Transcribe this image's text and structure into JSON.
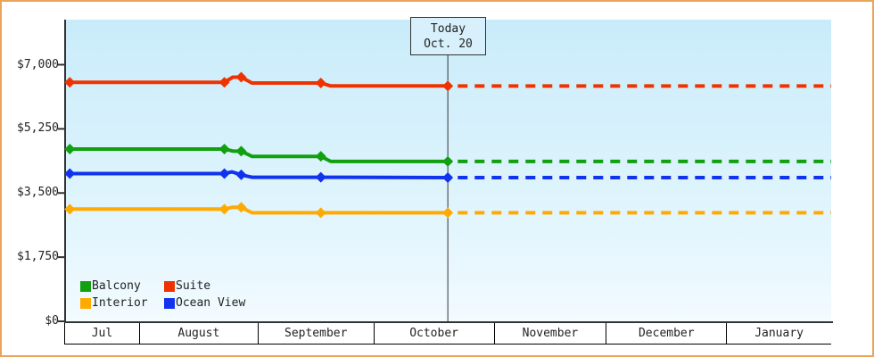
{
  "window": {
    "background": "#ffffff",
    "border_color": "#eba55a"
  },
  "today_flag": {
    "line1": "Today",
    "line2": "Oct. 20"
  },
  "legend": {
    "position": "inside-bottom-left",
    "items": [
      {
        "label": "Balcony",
        "color": "#10a010"
      },
      {
        "label": "Suite",
        "color": "#ee3300"
      },
      {
        "label": "Interior",
        "color": "#ffaa00"
      },
      {
        "label": "Ocean View",
        "color": "#1133ee"
      }
    ]
  },
  "chart_data": {
    "type": "line",
    "title": "",
    "description": "Price history with dashed flat forecast after the Today (Oct. 20) marker",
    "grid": false,
    "background_gradient": [
      "#c9ecfa",
      "#f3fbfe"
    ],
    "axis_color": "#333333",
    "y_axis": {
      "currency": "USD",
      "ticks": [
        {
          "value": 7000,
          "label": "$7,000"
        },
        {
          "value": 5250,
          "label": "$5,250"
        },
        {
          "value": 3500,
          "label": "$3,500"
        },
        {
          "value": 1750,
          "label": "$1,750"
        },
        {
          "value": 0,
          "label": "$0"
        }
      ],
      "ylim": [
        0,
        8200
      ]
    },
    "x_axis": {
      "months": [
        "Jul",
        "August",
        "September",
        "October",
        "November",
        "December",
        "January"
      ],
      "month_width_fractions": [
        0.0977,
        0.1547,
        0.1512,
        0.157,
        0.1465,
        0.157,
        0.1359
      ]
    },
    "today_marker": {
      "x_fraction": 0.499,
      "label": "Today",
      "date": "Oct. 20"
    },
    "series": [
      {
        "name": "Suite",
        "color": "#ee3300",
        "points": [
          {
            "x": 0.0,
            "v": 6520
          },
          {
            "x": 0.005,
            "v": 6520,
            "marker": true
          },
          {
            "x": 0.207,
            "v": 6520,
            "marker": true
          },
          {
            "x": 0.218,
            "v": 6660
          },
          {
            "x": 0.229,
            "v": 6660,
            "marker": true
          },
          {
            "x": 0.243,
            "v": 6500
          },
          {
            "x": 0.333,
            "v": 6500,
            "marker": true
          },
          {
            "x": 0.346,
            "v": 6420
          },
          {
            "x": 0.499,
            "v": 6420,
            "marker": true
          }
        ],
        "forecast": {
          "from_x": 0.512,
          "to_x": 1.0,
          "v": 6420
        }
      },
      {
        "name": "Balcony",
        "color": "#10a010",
        "points": [
          {
            "x": 0.0,
            "v": 4700
          },
          {
            "x": 0.005,
            "v": 4700,
            "marker": true
          },
          {
            "x": 0.207,
            "v": 4700,
            "marker": true
          },
          {
            "x": 0.219,
            "v": 4640
          },
          {
            "x": 0.229,
            "v": 4640,
            "marker": true
          },
          {
            "x": 0.243,
            "v": 4500
          },
          {
            "x": 0.333,
            "v": 4500,
            "marker": true
          },
          {
            "x": 0.346,
            "v": 4360
          },
          {
            "x": 0.499,
            "v": 4360,
            "marker": true
          }
        ],
        "forecast": {
          "from_x": 0.512,
          "to_x": 1.0,
          "v": 4360
        }
      },
      {
        "name": "Ocean View",
        "color": "#1133ee",
        "points": [
          {
            "x": 0.0,
            "v": 4030
          },
          {
            "x": 0.005,
            "v": 4030,
            "marker": true
          },
          {
            "x": 0.207,
            "v": 4030,
            "marker": true
          },
          {
            "x": 0.217,
            "v": 4075
          },
          {
            "x": 0.229,
            "v": 3995,
            "marker": true
          },
          {
            "x": 0.243,
            "v": 3930
          },
          {
            "x": 0.333,
            "v": 3930,
            "marker": true
          },
          {
            "x": 0.499,
            "v": 3920,
            "marker": true
          }
        ],
        "forecast": {
          "from_x": 0.512,
          "to_x": 1.0,
          "v": 3920
        }
      },
      {
        "name": "Interior",
        "color": "#ffaa00",
        "points": [
          {
            "x": 0.0,
            "v": 3060
          },
          {
            "x": 0.005,
            "v": 3060,
            "marker": true
          },
          {
            "x": 0.207,
            "v": 3060,
            "marker": true
          },
          {
            "x": 0.217,
            "v": 3110
          },
          {
            "x": 0.229,
            "v": 3110,
            "marker": true
          },
          {
            "x": 0.243,
            "v": 2960
          },
          {
            "x": 0.333,
            "v": 2960,
            "marker": true
          },
          {
            "x": 0.499,
            "v": 2960,
            "marker": true
          }
        ],
        "forecast": {
          "from_x": 0.512,
          "to_x": 1.0,
          "v": 2960
        }
      }
    ]
  }
}
